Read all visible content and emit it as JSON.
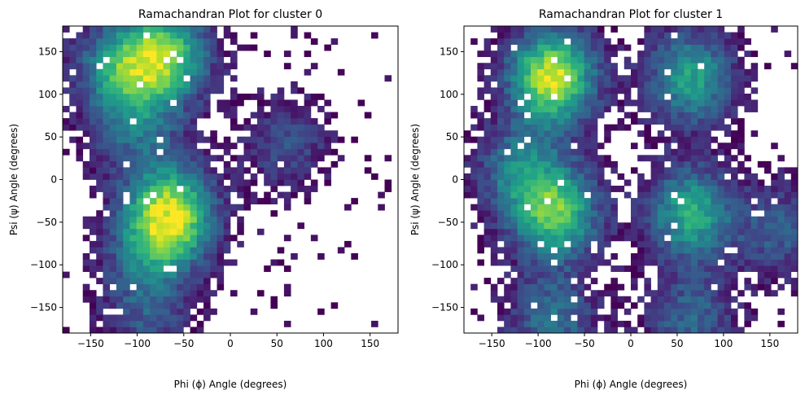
{
  "chart_data": [
    {
      "type": "heatmap",
      "title": "Ramachandran Plot for cluster 0",
      "xlabel": "Phi (ϕ) Angle (degrees)",
      "ylabel": "Psi (ψ) Angle (degrees)",
      "xlim": [
        -180,
        180
      ],
      "ylim": [
        -180,
        180
      ],
      "xticks": [
        -150,
        -100,
        -50,
        0,
        50,
        100,
        150
      ],
      "yticks": [
        -150,
        -100,
        -50,
        0,
        50,
        100,
        150
      ],
      "bins": 50,
      "colormap": "viridis",
      "hotspots": [
        {
          "phi": -65,
          "psi": -42,
          "intensity": 1.0
        },
        {
          "phi": -70,
          "psi": 145,
          "intensity": 0.8
        },
        {
          "phi": -120,
          "psi": 130,
          "intensity": 0.55
        },
        {
          "phi": -100,
          "psi": 60,
          "intensity": 0.35
        },
        {
          "phi": -90,
          "psi": -90,
          "intensity": 0.3
        },
        {
          "phi": 60,
          "psi": 40,
          "intensity": 0.25
        },
        {
          "phi": -90,
          "psi": -160,
          "intensity": 0.25
        }
      ]
    },
    {
      "type": "heatmap",
      "title": "Ramachandran Plot for cluster 1",
      "xlabel": "Phi (ϕ) Angle (degrees)",
      "ylabel": "Psi (ψ) Angle (degrees)",
      "xlim": [
        -180,
        180
      ],
      "ylim": [
        -180,
        180
      ],
      "xticks": [
        -150,
        -100,
        -50,
        0,
        50,
        100,
        150
      ],
      "yticks": [
        -150,
        -100,
        -50,
        0,
        50,
        100,
        150
      ],
      "bins": 50,
      "colormap": "viridis",
      "hotspots": [
        {
          "phi": -85,
          "psi": 120,
          "intensity": 1.0
        },
        {
          "phi": -80,
          "psi": -40,
          "intensity": 0.75
        },
        {
          "phi": 65,
          "psi": -40,
          "intensity": 0.65
        },
        {
          "phi": 65,
          "psi": 120,
          "intensity": 0.6
        },
        {
          "phi": -120,
          "psi": 10,
          "intensity": 0.45
        },
        {
          "phi": -85,
          "psi": -165,
          "intensity": 0.4
        },
        {
          "phi": 65,
          "psi": -165,
          "intensity": 0.35
        },
        {
          "phi": 160,
          "psi": -60,
          "intensity": 0.3
        }
      ]
    }
  ]
}
